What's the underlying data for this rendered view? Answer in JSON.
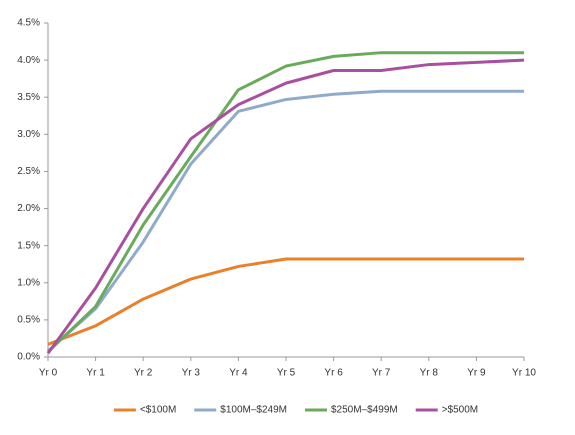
{
  "chart_data": {
    "type": "line",
    "categories": [
      "Yr 0",
      "Yr 1",
      "Yr 2",
      "Yr 3",
      "Yr 4",
      "Yr 5",
      "Yr 6",
      "Yr 7",
      "Yr 8",
      "Yr 9",
      "Yr 10"
    ],
    "series": [
      {
        "name": "<$100M",
        "color": "#e8812a",
        "values": [
          0.17,
          0.42,
          0.78,
          1.05,
          1.22,
          1.32,
          1.32,
          1.32,
          1.32,
          1.32,
          1.32
        ]
      },
      {
        "name": "$100M–$249M",
        "color": "#8faacb",
        "values": [
          0.08,
          0.65,
          1.55,
          2.6,
          3.31,
          3.47,
          3.54,
          3.58,
          3.58,
          3.58,
          3.58
        ]
      },
      {
        "name": "$250M–$499M",
        "color": "#68ab5a",
        "values": [
          0.07,
          0.68,
          1.78,
          2.7,
          3.6,
          3.92,
          4.05,
          4.1,
          4.1,
          4.1,
          4.1
        ]
      },
      {
        "name": ">$500M",
        "color": "#a8509f",
        "values": [
          0.05,
          0.93,
          2.0,
          2.94,
          3.4,
          3.69,
          3.86,
          3.86,
          3.94,
          3.97,
          4.0
        ]
      }
    ],
    "ylim": [
      0,
      4.5
    ],
    "yticks": [
      {
        "value": 0,
        "label": "0.0%"
      },
      {
        "value": 0.5,
        "label": "0.5%"
      },
      {
        "value": 1,
        "label": "1.0%"
      },
      {
        "value": 1.5,
        "label": "1.5%"
      },
      {
        "value": 2,
        "label": "2.0%"
      },
      {
        "value": 2.5,
        "label": "2.5%"
      },
      {
        "value": 3,
        "label": "3.0%"
      },
      {
        "value": 3.5,
        "label": "3.5%"
      },
      {
        "value": 4,
        "label": "4.0%"
      },
      {
        "value": 4.5,
        "label": "4.5%"
      }
    ],
    "grid": false,
    "legend": "bottom"
  }
}
